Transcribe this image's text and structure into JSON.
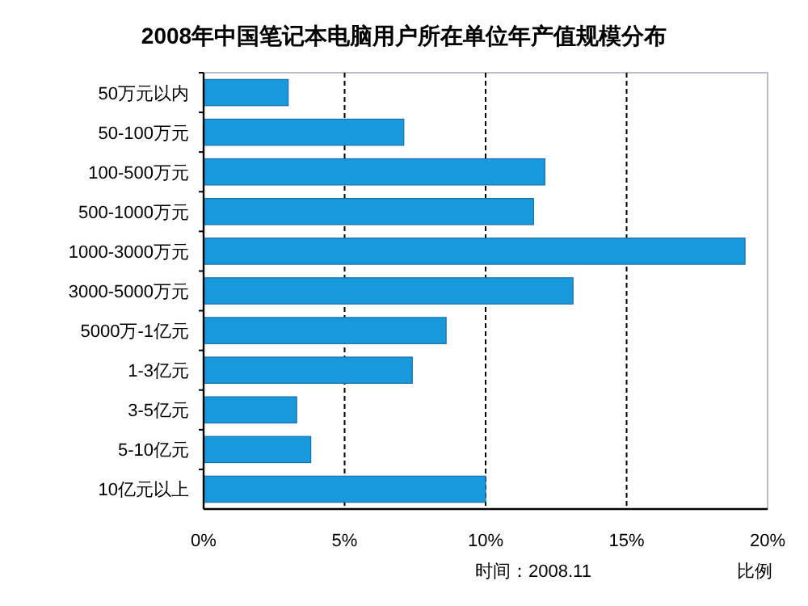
{
  "chart_data": {
    "type": "bar",
    "orientation": "horizontal",
    "title": "2008年中国笔记本电脑用户所在单位年产值规模分布",
    "categories": [
      "50万元以内",
      "50-100万元",
      "100-500万元",
      "500-1000万元",
      "1000-3000万元",
      "3000-5000万元",
      "5000万-1亿元",
      "1-3亿元",
      "3-5亿元",
      "5-10亿元",
      "10亿元以上"
    ],
    "values": [
      3.0,
      7.1,
      12.1,
      11.7,
      19.2,
      13.1,
      8.6,
      7.4,
      3.3,
      3.8,
      10.0
    ],
    "color": "#1899dc",
    "xlim": [
      0,
      20
    ],
    "xticks": [
      {
        "value": 0,
        "label": "0%"
      },
      {
        "value": 5,
        "label": "5%"
      },
      {
        "value": 10,
        "label": "10%"
      },
      {
        "value": 15,
        "label": "15%"
      },
      {
        "value": 20,
        "label": "20%"
      }
    ],
    "xlabel": "比例",
    "annotations": [
      "时间：2008.11"
    ],
    "grid": "x"
  }
}
